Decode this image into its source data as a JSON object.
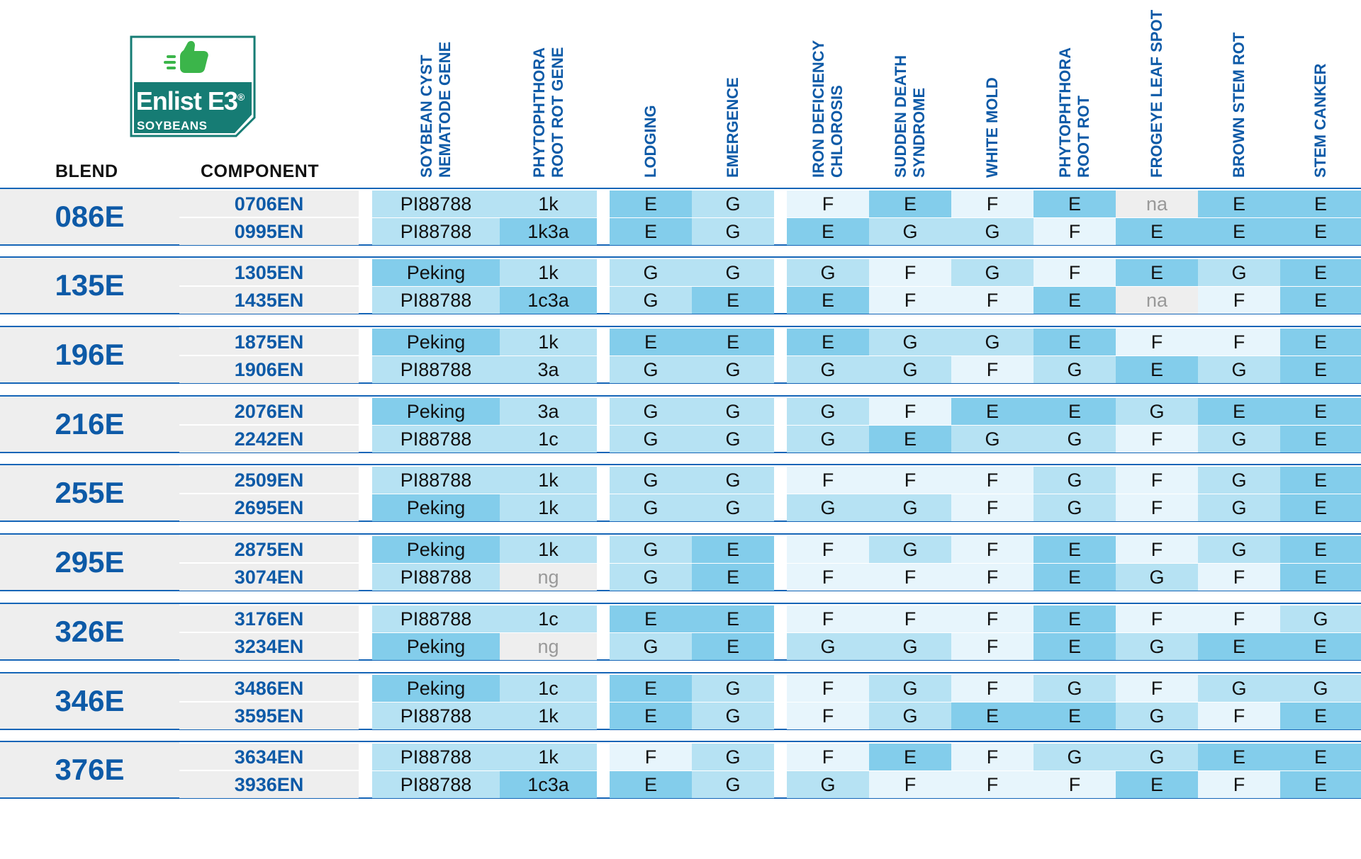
{
  "brand": {
    "logo_name": "Enlist E3",
    "logo_mark": "®",
    "logo_subtitle": "SOYBEANS",
    "color_primary": "#0d5aa7",
    "color_logo_teal": "#167c74",
    "color_logo_green": "#3bb54a"
  },
  "headers": {
    "blend": "BLEND",
    "component": "COMPONENT",
    "columns": [
      "SOYBEAN CYST\nNEMATODE GENE",
      "PHYTOPHTHORA\nROOT ROT GENE",
      "LODGING",
      "EMERGENCE",
      "IRON DEFICIENCY\nCHLOROSIS",
      "SUDDEN DEATH\nSYNDROME",
      "WHITE MOLD",
      "PHYTOPHTHORA\nROOT ROT",
      "FROGEYE LEAF SPOT",
      "BROWN STEM ROT",
      "STEM CANKER"
    ]
  },
  "rating_colors": {
    "E": "#83cdeb",
    "G": "#b6e2f3",
    "F": "#e7f5fc",
    "na": "#eeeeee",
    "ng": "#eeeeee",
    "Peking": "#83cdeb",
    "PI88788": "#b6e2f3",
    "gene_special": "#83cdeb",
    "gene_default": "#b6e2f3"
  },
  "groups": [
    {
      "blend": "086E",
      "rows": [
        {
          "component": "0706EN",
          "values": [
            "PI88788",
            "1k",
            "E",
            "G",
            "F",
            "E",
            "F",
            "E",
            "na",
            "E",
            "E"
          ]
        },
        {
          "component": "0995EN",
          "values": [
            "PI88788",
            "1k3a",
            "E",
            "G",
            "E",
            "G",
            "G",
            "F",
            "E",
            "E",
            "E"
          ]
        }
      ]
    },
    {
      "blend": "135E",
      "rows": [
        {
          "component": "1305EN",
          "values": [
            "Peking",
            "1k",
            "G",
            "G",
            "G",
            "F",
            "G",
            "F",
            "E",
            "G",
            "E"
          ]
        },
        {
          "component": "1435EN",
          "values": [
            "PI88788",
            "1c3a",
            "G",
            "E",
            "E",
            "F",
            "F",
            "E",
            "na",
            "F",
            "E"
          ]
        }
      ]
    },
    {
      "blend": "196E",
      "rows": [
        {
          "component": "1875EN",
          "values": [
            "Peking",
            "1k",
            "E",
            "E",
            "E",
            "G",
            "G",
            "E",
            "F",
            "F",
            "E"
          ]
        },
        {
          "component": "1906EN",
          "values": [
            "PI88788",
            "3a",
            "G",
            "G",
            "G",
            "G",
            "F",
            "G",
            "E",
            "G",
            "E"
          ]
        }
      ]
    },
    {
      "blend": "216E",
      "rows": [
        {
          "component": "2076EN",
          "values": [
            "Peking",
            "3a",
            "G",
            "G",
            "G",
            "F",
            "E",
            "E",
            "G",
            "E",
            "E"
          ]
        },
        {
          "component": "2242EN",
          "values": [
            "PI88788",
            "1c",
            "G",
            "G",
            "G",
            "E",
            "G",
            "G",
            "F",
            "G",
            "E"
          ]
        }
      ]
    },
    {
      "blend": "255E",
      "rows": [
        {
          "component": "2509EN",
          "values": [
            "PI88788",
            "1k",
            "G",
            "G",
            "F",
            "F",
            "F",
            "G",
            "F",
            "G",
            "E"
          ]
        },
        {
          "component": "2695EN",
          "values": [
            "Peking",
            "1k",
            "G",
            "G",
            "G",
            "G",
            "F",
            "G",
            "F",
            "G",
            "E"
          ]
        }
      ]
    },
    {
      "blend": "295E",
      "rows": [
        {
          "component": "2875EN",
          "values": [
            "Peking",
            "1k",
            "G",
            "E",
            "F",
            "G",
            "F",
            "E",
            "F",
            "G",
            "E"
          ]
        },
        {
          "component": "3074EN",
          "values": [
            "PI88788",
            "ng",
            "G",
            "E",
            "F",
            "F",
            "F",
            "E",
            "G",
            "F",
            "E"
          ]
        }
      ]
    },
    {
      "blend": "326E",
      "rows": [
        {
          "component": "3176EN",
          "values": [
            "PI88788",
            "1c",
            "E",
            "E",
            "F",
            "F",
            "F",
            "E",
            "F",
            "F",
            "G"
          ]
        },
        {
          "component": "3234EN",
          "values": [
            "Peking",
            "ng",
            "G",
            "E",
            "G",
            "G",
            "F",
            "E",
            "G",
            "E",
            "E"
          ]
        }
      ]
    },
    {
      "blend": "346E",
      "rows": [
        {
          "component": "3486EN",
          "values": [
            "Peking",
            "1c",
            "E",
            "G",
            "F",
            "G",
            "F",
            "G",
            "F",
            "G",
            "G"
          ]
        },
        {
          "component": "3595EN",
          "values": [
            "PI88788",
            "1k",
            "E",
            "G",
            "F",
            "G",
            "E",
            "E",
            "G",
            "F",
            "E"
          ]
        }
      ]
    },
    {
      "blend": "376E",
      "rows": [
        {
          "component": "3634EN",
          "values": [
            "PI88788",
            "1k",
            "F",
            "G",
            "F",
            "E",
            "F",
            "G",
            "G",
            "E",
            "E"
          ]
        },
        {
          "component": "3936EN",
          "values": [
            "PI88788",
            "1c3a",
            "E",
            "G",
            "G",
            "F",
            "F",
            "F",
            "E",
            "F",
            "E"
          ]
        }
      ]
    }
  ]
}
